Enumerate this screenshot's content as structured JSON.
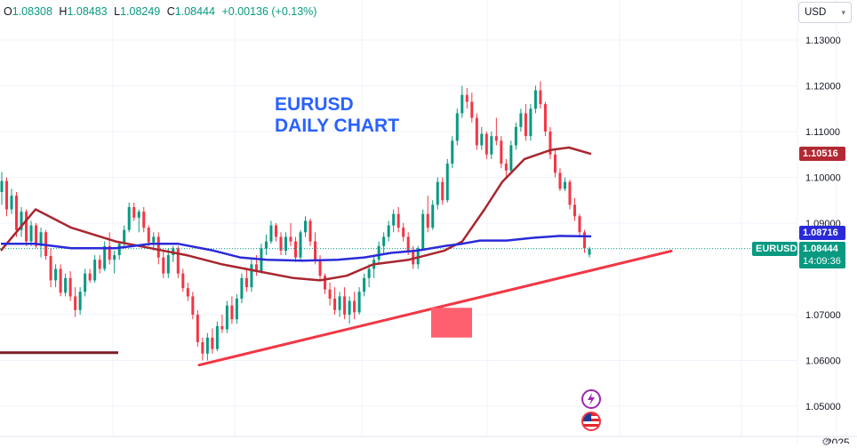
{
  "header": {
    "o_label": "O",
    "o_value": "1.08308",
    "h_label": "H",
    "h_value": "1.08483",
    "l_label": "L",
    "l_value": "1.08249",
    "c_label": "C",
    "c_value": "1.08444",
    "change": "+0.00136 (+0.13%)"
  },
  "currency_selector": {
    "label": "USD"
  },
  "annotation": {
    "line1": "EURUSD",
    "line2": "DAILY CHART"
  },
  "price_axis": {
    "ticks": [
      "1.13000",
      "1.12000",
      "1.11000",
      "1.10000",
      "1.09000",
      "1.07000",
      "1.06000",
      "1.05000"
    ],
    "tick_values": [
      1.13,
      1.12,
      1.11,
      1.1,
      1.09,
      1.07,
      1.06,
      1.05
    ]
  },
  "time_axis": {
    "labels": [
      "",
      "",
      "",
      "",
      "",
      "",
      "2025",
      "",
      ""
    ]
  },
  "badges": {
    "ma_long": "1.10516",
    "ma_short": "1.08716",
    "symbol": "EURUSD",
    "last_price": "1.08444",
    "countdown": "14:09:36"
  },
  "colors": {
    "up": "#089981",
    "down": "#f23645",
    "ma_long": "#a8262f",
    "ma_short": "#2a2ad8",
    "trendline": "#f23645",
    "zone": "#ff6070",
    "annotation": "#2962ff",
    "horizontal_line": "#7b1e28"
  },
  "icons": [
    "lightning-icon",
    "us-flag-icon",
    "settings-icon"
  ],
  "chart_data": {
    "type": "candlestick",
    "symbol": "EURUSD",
    "title": "EURUSD DAILY CHART",
    "ylim": [
      1.045,
      1.138
    ],
    "last_close": 1.08444,
    "overlays": [
      {
        "name": "ma_long",
        "color": "#a8262f",
        "points": [
          [
            1,
            1.084
          ],
          [
            40,
            1.093
          ],
          [
            80,
            1.089
          ],
          [
            130,
            1.086
          ],
          [
            170,
            1.0845
          ],
          [
            210,
            1.083
          ],
          [
            250,
            1.081
          ],
          [
            290,
            1.0795
          ],
          [
            330,
            1.078
          ],
          [
            360,
            1.0775
          ],
          [
            390,
            1.0785
          ],
          [
            420,
            1.081
          ],
          [
            460,
            1.082
          ],
          [
            500,
            1.084
          ],
          [
            520,
            1.086
          ],
          [
            545,
            1.093
          ],
          [
            565,
            1.099
          ],
          [
            590,
            1.104
          ],
          [
            620,
            1.106
          ],
          [
            640,
            1.1065
          ],
          [
            665,
            1.1051
          ]
        ]
      },
      {
        "name": "ma_short",
        "color": "#2a2ad8",
        "points": [
          [
            1,
            1.0855
          ],
          [
            40,
            1.0855
          ],
          [
            80,
            1.0845
          ],
          [
            130,
            1.0845
          ],
          [
            170,
            1.0855
          ],
          [
            200,
            1.0855
          ],
          [
            240,
            1.084
          ],
          [
            270,
            1.0825
          ],
          [
            300,
            1.082
          ],
          [
            340,
            1.0818
          ],
          [
            380,
            1.082
          ],
          [
            410,
            1.0825
          ],
          [
            440,
            1.0835
          ],
          [
            470,
            1.084
          ],
          [
            500,
            1.085
          ],
          [
            520,
            1.0855
          ],
          [
            540,
            1.0862
          ],
          [
            570,
            1.0862
          ],
          [
            600,
            1.0868
          ],
          [
            630,
            1.0872
          ],
          [
            665,
            1.0871
          ]
        ]
      }
    ],
    "trendline": {
      "from": [
        224,
        1.059
      ],
      "to": [
        755,
        1.0839
      ]
    },
    "zone": {
      "x0": 485,
      "x1": 531,
      "top": 1.0715,
      "bottom": 1.065
    },
    "horizontal_line": {
      "from": [
        0,
        1.0617
      ],
      "to": [
        133,
        1.0617
      ]
    },
    "candles_ohlc": [
      [
        1.0968,
        1.1012,
        1.094,
        1.0992
      ],
      [
        1.0992,
        1.1,
        1.0915,
        1.093
      ],
      [
        1.093,
        1.0975,
        1.092,
        1.096
      ],
      [
        1.096,
        1.0968,
        1.087,
        1.0885
      ],
      [
        1.0885,
        1.0935,
        1.087,
        1.0925
      ],
      [
        1.0925,
        1.093,
        1.085,
        1.086
      ],
      [
        1.086,
        1.0905,
        1.085,
        1.0895
      ],
      [
        1.0895,
        1.09,
        1.0845,
        1.085
      ],
      [
        1.085,
        1.089,
        1.0825,
        1.088
      ],
      [
        1.088,
        1.0885,
        1.082,
        1.0828
      ],
      [
        1.0828,
        1.0845,
        1.076,
        1.0775
      ],
      [
        1.0775,
        1.081,
        1.076,
        1.08
      ],
      [
        1.08,
        1.081,
        1.074,
        1.0748
      ],
      [
        1.0748,
        1.079,
        1.074,
        1.078
      ],
      [
        1.078,
        1.0795,
        1.073,
        1.074
      ],
      [
        1.074,
        1.076,
        1.0695,
        1.071
      ],
      [
        1.071,
        1.076,
        1.07,
        1.075
      ],
      [
        1.075,
        1.08,
        1.074,
        1.079
      ],
      [
        1.079,
        1.08,
        1.077,
        1.0775
      ],
      [
        1.0775,
        1.083,
        1.077,
        1.082
      ],
      [
        1.082,
        1.083,
        1.079,
        1.08
      ],
      [
        1.08,
        1.086,
        1.0795,
        1.085
      ],
      [
        1.085,
        1.088,
        1.081,
        1.082
      ],
      [
        1.082,
        1.084,
        1.079,
        1.083
      ],
      [
        1.083,
        1.086,
        1.082,
        1.0855
      ],
      [
        1.0855,
        1.0895,
        1.0845,
        1.0885
      ],
      [
        1.0885,
        1.0945,
        1.088,
        1.0935
      ],
      [
        1.0935,
        1.0945,
        1.0905,
        1.0912
      ],
      [
        1.0912,
        1.093,
        1.088,
        1.0925
      ],
      [
        1.0925,
        1.0935,
        1.088,
        1.089
      ],
      [
        1.089,
        1.0895,
        1.085,
        1.0858
      ],
      [
        1.0858,
        1.088,
        1.084,
        1.087
      ],
      [
        1.087,
        1.088,
        1.081,
        1.0825
      ],
      [
        1.0825,
        1.084,
        1.078,
        1.079
      ],
      [
        1.079,
        1.0845,
        1.078,
        1.083
      ],
      [
        1.083,
        1.085,
        1.0815,
        1.0845
      ],
      [
        1.0845,
        1.085,
        1.078,
        1.079
      ],
      [
        1.079,
        1.08,
        1.075,
        1.0758
      ],
      [
        1.0758,
        1.077,
        1.073,
        1.074
      ],
      [
        1.074,
        1.075,
        1.069,
        1.07
      ],
      [
        1.07,
        1.071,
        1.063,
        1.064
      ],
      [
        1.064,
        1.065,
        1.06,
        1.0615
      ],
      [
        1.0615,
        1.066,
        1.06,
        1.065
      ],
      [
        1.065,
        1.067,
        1.0615,
        1.0625
      ],
      [
        1.0625,
        1.0685,
        1.062,
        1.0675
      ],
      [
        1.0675,
        1.07,
        1.066,
        1.0668
      ],
      [
        1.0668,
        1.073,
        1.066,
        1.072
      ],
      [
        1.072,
        1.074,
        1.068,
        1.069
      ],
      [
        1.069,
        1.0745,
        1.068,
        1.0735
      ],
      [
        1.0735,
        1.079,
        1.0725,
        1.078
      ],
      [
        1.078,
        1.08,
        1.075,
        1.076
      ],
      [
        1.076,
        1.082,
        1.075,
        1.081
      ],
      [
        1.081,
        1.083,
        1.0785,
        1.0795
      ],
      [
        1.0795,
        1.0855,
        1.079,
        1.0845
      ],
      [
        1.0845,
        1.0875,
        1.083,
        1.086
      ],
      [
        1.086,
        1.0905,
        1.0855,
        1.0895
      ],
      [
        1.0895,
        1.09,
        1.086,
        1.087
      ],
      [
        1.087,
        1.088,
        1.083,
        1.084
      ],
      [
        1.084,
        1.088,
        1.083,
        1.087
      ],
      [
        1.087,
        1.09,
        1.085,
        1.086
      ],
      [
        1.086,
        1.087,
        1.0815,
        1.0825
      ],
      [
        1.0825,
        1.0885,
        1.082,
        1.088
      ],
      [
        1.088,
        1.0915,
        1.087,
        1.0905
      ],
      [
        1.0905,
        1.091,
        1.085,
        1.086
      ],
      [
        1.086,
        1.088,
        1.081,
        1.082
      ],
      [
        1.082,
        1.083,
        1.0775,
        1.0785
      ],
      [
        1.0785,
        1.079,
        1.0745,
        1.0755
      ],
      [
        1.0755,
        1.077,
        1.072,
        1.0735
      ],
      [
        1.0735,
        1.076,
        1.07,
        1.071
      ],
      [
        1.071,
        1.075,
        1.0695,
        1.074
      ],
      [
        1.074,
        1.076,
        1.069,
        1.07
      ],
      [
        1.07,
        1.074,
        1.068,
        1.073
      ],
      [
        1.073,
        1.075,
        1.069,
        1.0705
      ],
      [
        1.0705,
        1.076,
        1.07,
        1.075
      ],
      [
        1.075,
        1.079,
        1.074,
        1.078
      ],
      [
        1.078,
        1.081,
        1.076,
        1.08
      ],
      [
        1.08,
        1.083,
        1.078,
        1.082
      ],
      [
        1.082,
        1.086,
        1.081,
        1.085
      ],
      [
        1.085,
        1.088,
        1.083,
        1.087
      ],
      [
        1.087,
        1.0905,
        1.086,
        1.0895
      ],
      [
        1.0895,
        1.093,
        1.088,
        1.092
      ],
      [
        1.092,
        1.0935,
        1.088,
        1.089
      ],
      [
        1.089,
        1.09,
        1.086,
        1.087
      ],
      [
        1.087,
        1.088,
        1.083,
        1.084
      ],
      [
        1.084,
        1.085,
        1.08,
        1.081
      ],
      [
        1.081,
        1.085,
        1.08,
        1.0845
      ],
      [
        1.0845,
        1.093,
        1.084,
        1.092
      ],
      [
        1.092,
        1.096,
        1.088,
        1.089
      ],
      [
        1.089,
        1.095,
        1.0885,
        1.094
      ],
      [
        1.094,
        1.1,
        1.093,
        1.099
      ],
      [
        1.099,
        1.1,
        1.094,
        1.095
      ],
      [
        1.095,
        1.104,
        1.0945,
        1.103
      ],
      [
        1.103,
        1.109,
        1.102,
        1.108
      ],
      [
        1.108,
        1.115,
        1.107,
        1.114
      ],
      [
        1.114,
        1.12,
        1.113,
        1.118
      ],
      [
        1.118,
        1.1195,
        1.115,
        1.1165
      ],
      [
        1.1165,
        1.1185,
        1.112,
        1.113
      ],
      [
        1.113,
        1.114,
        1.106,
        1.107
      ],
      [
        1.107,
        1.111,
        1.106,
        1.1095
      ],
      [
        1.1095,
        1.11,
        1.104,
        1.105
      ],
      [
        1.105,
        1.11,
        1.104,
        1.109
      ],
      [
        1.109,
        1.113,
        1.107,
        1.108
      ],
      [
        1.108,
        1.109,
        1.102,
        1.103
      ],
      [
        1.103,
        1.104,
        1.1,
        1.1015
      ],
      [
        1.1015,
        1.108,
        1.101,
        1.107
      ],
      [
        1.107,
        1.112,
        1.106,
        1.111
      ],
      [
        1.111,
        1.115,
        1.11,
        1.114
      ],
      [
        1.114,
        1.116,
        1.108,
        1.109
      ],
      [
        1.109,
        1.116,
        1.108,
        1.115
      ],
      [
        1.115,
        1.12,
        1.114,
        1.119
      ],
      [
        1.119,
        1.121,
        1.115,
        1.116
      ],
      [
        1.116,
        1.1165,
        1.109,
        1.11
      ],
      [
        1.11,
        1.111,
        1.104,
        1.105
      ],
      [
        1.105,
        1.106,
        1.1,
        1.101
      ],
      [
        1.101,
        1.102,
        1.097,
        1.0975
      ],
      [
        1.0975,
        1.1,
        1.097,
        1.099
      ],
      [
        1.099,
        1.0995,
        1.093,
        1.094
      ],
      [
        1.094,
        1.0955,
        1.0905,
        1.0915
      ],
      [
        1.0915,
        1.092,
        1.087,
        1.088
      ],
      [
        1.088,
        1.0885,
        1.0835,
        1.0845
      ],
      [
        1.0831,
        1.0848,
        1.0825,
        1.0844
      ]
    ]
  }
}
